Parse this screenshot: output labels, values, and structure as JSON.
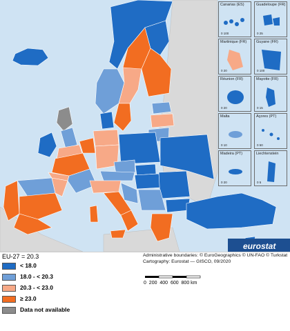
{
  "map": {
    "eu_average": "EU-27 = 20.3",
    "legend": [
      {
        "label": "< 18.0",
        "color": "#1f6cc4"
      },
      {
        "label": "18.0 - < 20.3",
        "color": "#6f9fd8"
      },
      {
        "label": "20.3 - < 23.0",
        "color": "#f7a987"
      },
      {
        "label": "≥ 23.0",
        "color": "#f26d21"
      },
      {
        "label": "Data not available",
        "color": "#8c8c8c"
      }
    ],
    "credits_1": "Administrative boundaries: © EuroGeographics © UN-FAO © Turkstat",
    "credits_2": "Cartography: Eurostat — GISCO, 09/2020",
    "scale_labels": [
      "0",
      "200",
      "400",
      "600",
      "800 km"
    ],
    "brand": "eurostat",
    "insets": [
      {
        "title": "Canarias (ES)",
        "scale": "0  100"
      },
      {
        "title": "Guadeloupe (FR)",
        "scale": "0  25"
      },
      {
        "title": "Martinique (FR)",
        "scale": "0   20"
      },
      {
        "title": "Guyane (FR)",
        "scale": "0  100"
      },
      {
        "title": "Réunion (FR)",
        "scale": "0   20"
      },
      {
        "title": "Mayotte (FR)",
        "scale": "0   15"
      },
      {
        "title": "Malta",
        "scale": "0   10"
      },
      {
        "title": "Açores (PT)",
        "scale": "0   50"
      },
      {
        "title": "Madeira (PT)",
        "scale": "0   20"
      },
      {
        "title": "Liechtenstein",
        "scale": "0   5"
      }
    ]
  }
}
